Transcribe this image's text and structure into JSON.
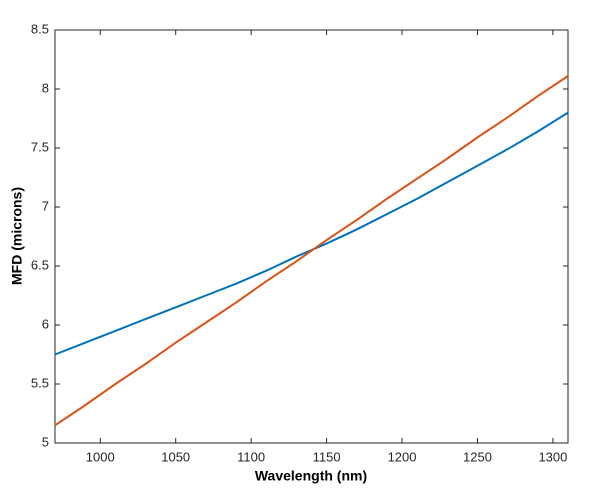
{
  "chart_data": {
    "type": "line",
    "xlabel": "Wavelength (nm)",
    "ylabel": "MFD (microns)",
    "x": [
      970,
      990,
      1010,
      1030,
      1050,
      1070,
      1090,
      1110,
      1130,
      1150,
      1170,
      1190,
      1210,
      1230,
      1250,
      1270,
      1290,
      1310
    ],
    "series": [
      {
        "color": "#0072bd",
        "values": [
          5.75,
          5.85,
          5.95,
          6.05,
          6.15,
          6.25,
          6.35,
          6.46,
          6.58,
          6.69,
          6.81,
          6.94,
          7.07,
          7.21,
          7.35,
          7.49,
          7.64,
          7.8
        ]
      },
      {
        "color": "#d95319",
        "values": [
          5.15,
          5.32,
          5.5,
          5.67,
          5.85,
          6.02,
          6.19,
          6.37,
          6.54,
          6.72,
          6.89,
          7.07,
          7.24,
          7.41,
          7.59,
          7.76,
          7.94,
          8.11
        ]
      }
    ],
    "xlim": [
      970,
      1310
    ],
    "xticks": [
      1000,
      1050,
      1100,
      1150,
      1200,
      1250,
      1300
    ],
    "ylim": [
      5,
      8.5
    ],
    "yticks": [
      5,
      5.5,
      6,
      6.5,
      7,
      7.5,
      8,
      8.5
    ],
    "grid": false
  }
}
